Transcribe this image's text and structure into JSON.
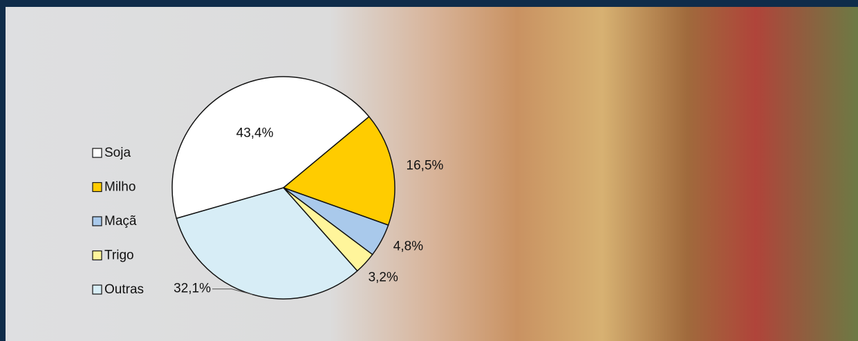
{
  "chart_data": {
    "type": "pie",
    "categories": [
      "Soja",
      "Milho",
      "Maçã",
      "Trigo",
      "Outras"
    ],
    "values": [
      43.4,
      16.5,
      4.8,
      3.2,
      32.1
    ],
    "value_labels": [
      "43,4%",
      "16,5%",
      "4,8%",
      "3,2%",
      "32,1%"
    ],
    "colors": [
      "#ffffff",
      "#ffcc00",
      "#a9c9eb",
      "#fff59b",
      "#d7edf6"
    ],
    "legend": "left"
  }
}
